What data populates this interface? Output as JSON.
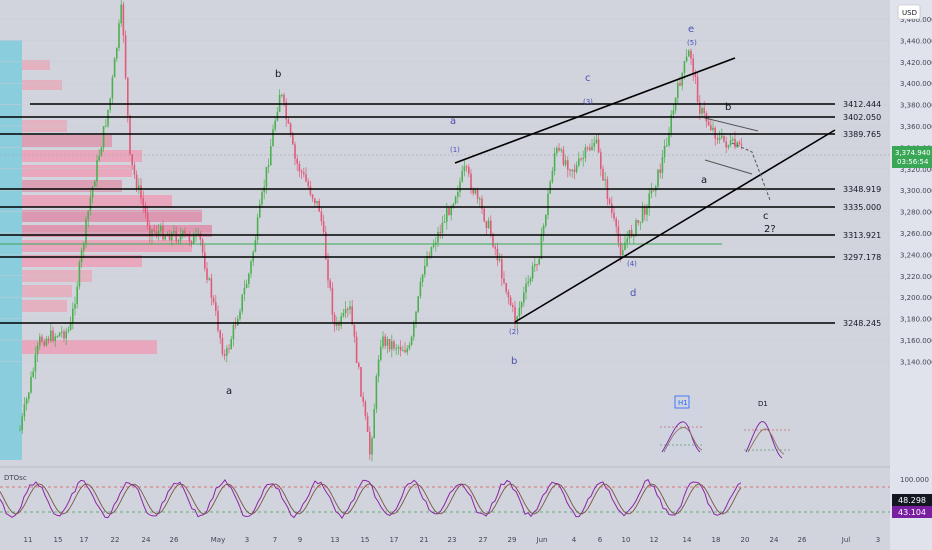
{
  "header": {
    "currency": "USD"
  },
  "price_tag": {
    "price": "3,374.940",
    "countdown": "03:56:54"
  },
  "oscillator": {
    "name": "DTOsc",
    "value_top": "48.298",
    "value_bottom": "43.104",
    "upper": "100.000"
  },
  "legend_h1": "H1",
  "legend_d1": "D1",
  "chart_data": {
    "type": "candlestick",
    "y_axis": {
      "range": [
        3140,
        3470
      ],
      "ticks": [
        "3,460.000",
        "3,440.000",
        "3,420.000",
        "3,400.000",
        "3,380.000",
        "3,360.000",
        "3,340.000",
        "3,320.000",
        "3,300.000",
        "3,280.000",
        "3,260.000",
        "3,240.000",
        "3,220.000",
        "3,200.000",
        "3,180.000",
        "3,160.000",
        "3,140.000"
      ]
    },
    "x_axis": {
      "ticks": [
        "11",
        "15",
        "17",
        "22",
        "24",
        "26",
        "May",
        "3",
        "7",
        "9",
        "13",
        "15",
        "17",
        "21",
        "23",
        "27",
        "29",
        "Jun",
        "4",
        "6",
        "10",
        "12",
        "14",
        "18",
        "20",
        "24",
        "26",
        "Jul",
        "3"
      ]
    },
    "levels": [
      {
        "label": "3412.444",
        "value": 3412.444
      },
      {
        "label": "3402.050",
        "value": 3402.05
      },
      {
        "label": "3389.765",
        "value": 3389.765
      },
      {
        "label": "3348.919",
        "value": 3348.919
      },
      {
        "label": "3335.000",
        "value": 3335.0
      },
      {
        "label": "3313.921",
        "value": 3313.921
      },
      {
        "label": "3297.178",
        "value": 3297.178
      },
      {
        "label": "3248.245",
        "value": 3248.245
      }
    ],
    "wave_labels": [
      "a",
      "b",
      "a",
      "b",
      "c",
      "d",
      "e",
      "(1)",
      "(2)",
      "(3)",
      "(4)",
      "(5)",
      "a",
      "b",
      "c",
      "2?"
    ]
  }
}
